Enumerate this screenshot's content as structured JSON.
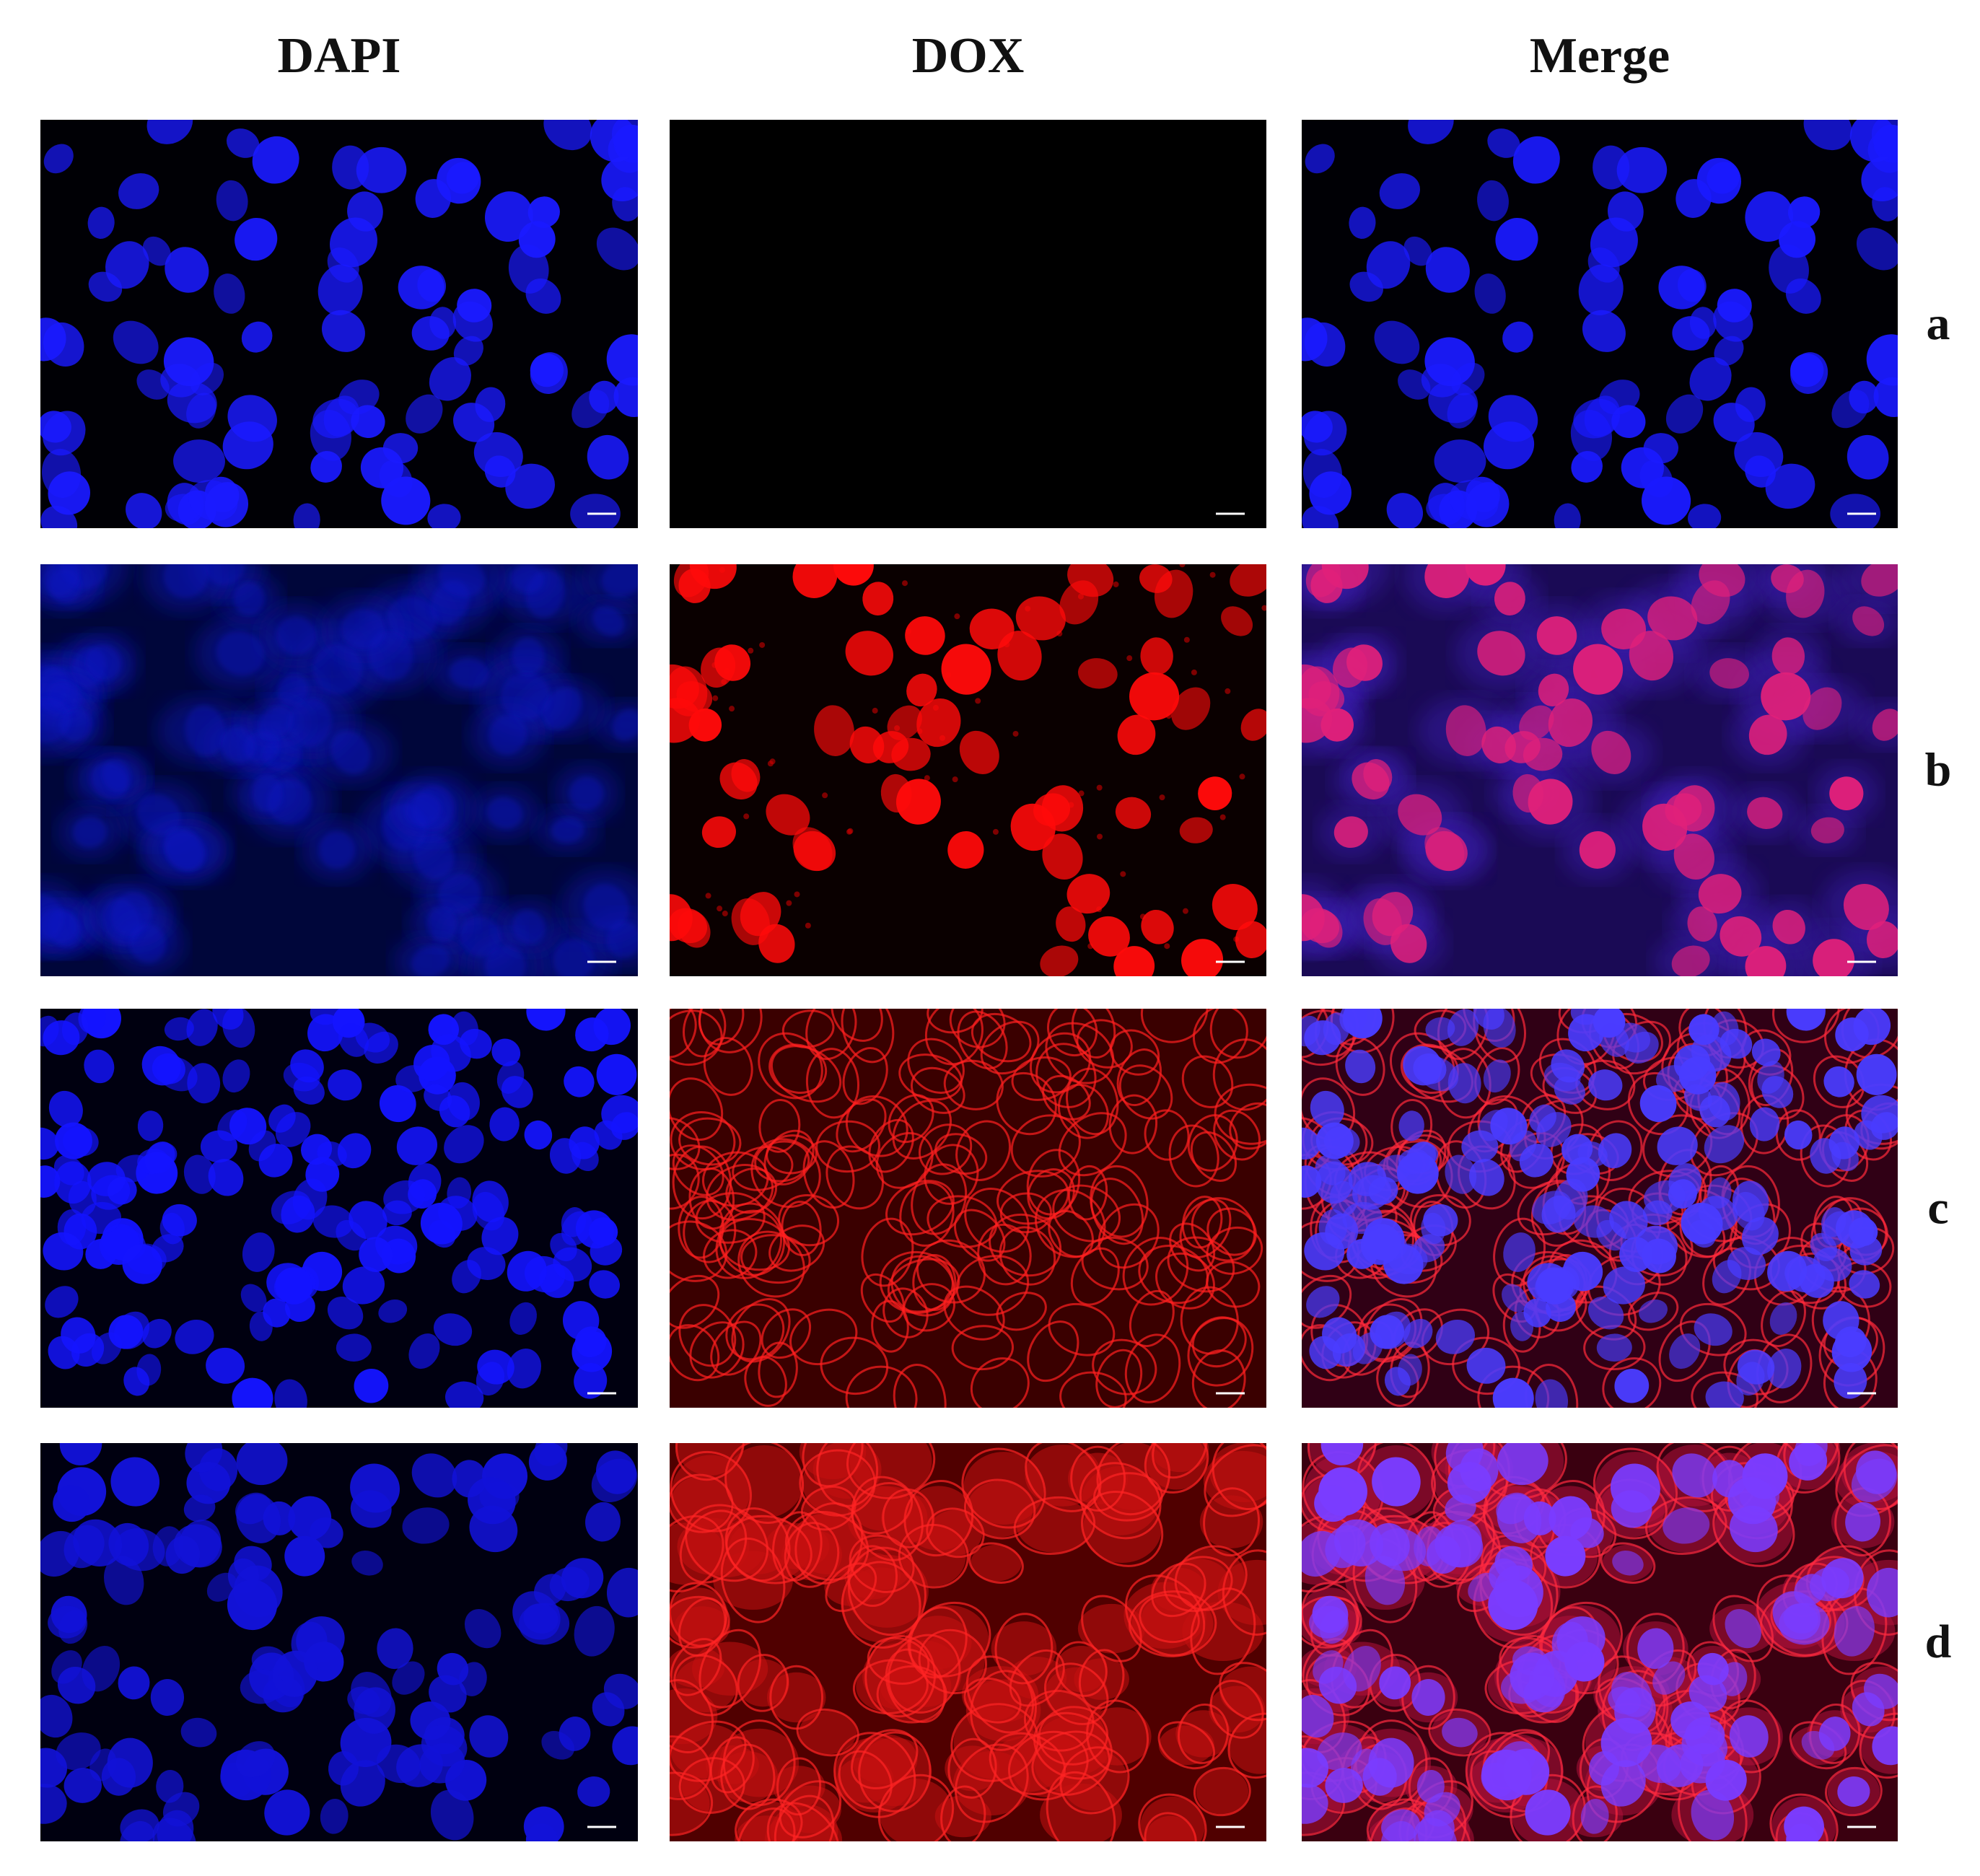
{
  "columns": [
    "DAPI",
    "DOX",
    "Merge"
  ],
  "rows": [
    "a",
    "b",
    "c",
    "d"
  ]
}
